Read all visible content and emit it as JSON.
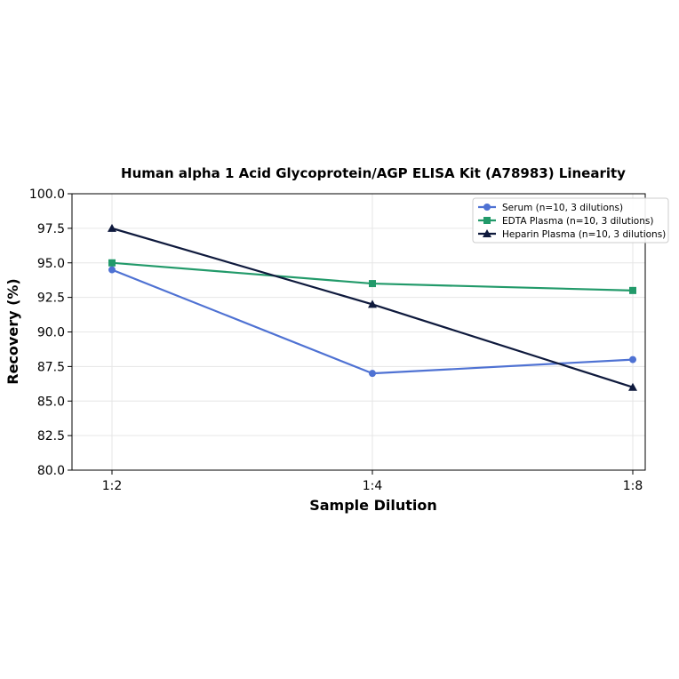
{
  "chart_data": {
    "type": "line",
    "title": "Human alpha 1 Acid Glycoprotein/AGP ELISA Kit (A78983) Linearity",
    "xlabel": "Sample Dilution",
    "ylabel": "Recovery (%)",
    "categories": [
      "1:2",
      "1:4",
      "1:8"
    ],
    "ylim": [
      80.0,
      100.0
    ],
    "yticks": [
      "80.0",
      "82.5",
      "85.0",
      "87.5",
      "90.0",
      "92.5",
      "95.0",
      "97.5",
      "100.0"
    ],
    "grid": true,
    "legend_position": "top-right",
    "series": [
      {
        "name": "Serum (n=10, 3 dilutions)",
        "values": [
          94.5,
          87.0,
          88.0
        ],
        "color": "#4f72d3",
        "marker": "circle"
      },
      {
        "name": "EDTA Plasma (n=10, 3 dilutions)",
        "values": [
          95.0,
          93.5,
          93.0
        ],
        "color": "#229a6a",
        "marker": "square"
      },
      {
        "name": "Heparin Plasma (n=10, 3 dilutions)",
        "values": [
          97.5,
          92.0,
          86.0
        ],
        "color": "#0f1a3d",
        "marker": "triangle"
      }
    ]
  }
}
